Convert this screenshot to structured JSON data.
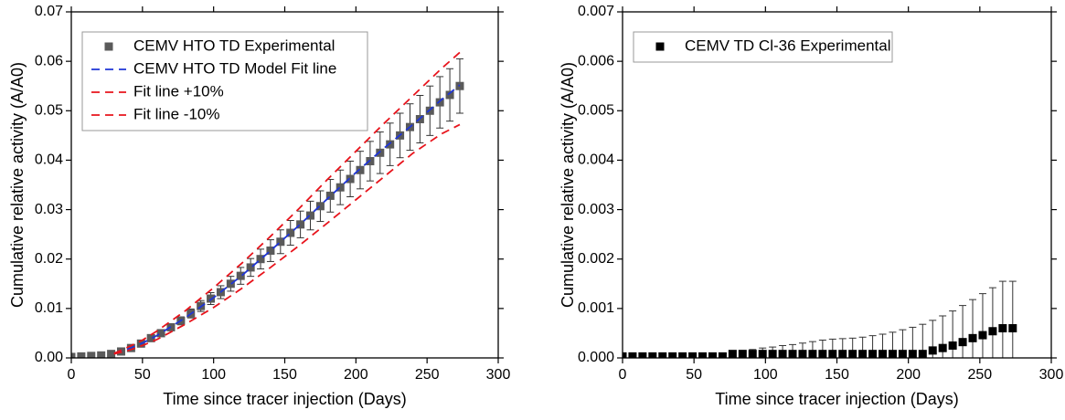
{
  "chart_data": [
    {
      "type": "scatter",
      "x_label": "Time since tracer injection (Days)",
      "y_label": "Cumulative relative activity (A/A0)",
      "xlim": [
        0,
        300
      ],
      "xticks": [
        0,
        50,
        100,
        150,
        200,
        250,
        300
      ],
      "ylim": [
        0,
        0.07
      ],
      "yticks": [
        {
          "value": 0,
          "label": "0.00"
        },
        {
          "value": 0.01,
          "label": "0.01"
        },
        {
          "value": 0.02,
          "label": "0.02"
        },
        {
          "value": 0.03,
          "label": "0.03"
        },
        {
          "value": 0.04,
          "label": "0.04"
        },
        {
          "value": 0.05,
          "label": "0.05"
        },
        {
          "value": 0.06,
          "label": "0.06"
        },
        {
          "value": 0.07,
          "label": "0.07"
        }
      ],
      "legend": "upper left",
      "series": [
        {
          "name": "CEMV HTO TD Experimental",
          "color": "#5a5a5a",
          "mode": "markers",
          "x": [
            0,
            7,
            14,
            21,
            28,
            35,
            42,
            49,
            56,
            63,
            70,
            77,
            84,
            91,
            98,
            105,
            112,
            119,
            126,
            133,
            140,
            147,
            154,
            161,
            168,
            175,
            182,
            189,
            196,
            203,
            210,
            217,
            224,
            231,
            238,
            245,
            252,
            259,
            266,
            273
          ],
          "values": [
            0.0002,
            0.0003,
            0.0004,
            0.0005,
            0.0008,
            0.0013,
            0.002,
            0.0029,
            0.004,
            0.005,
            0.0062,
            0.0075,
            0.009,
            0.0105,
            0.012,
            0.0133,
            0.015,
            0.0166,
            0.0183,
            0.02,
            0.0217,
            0.0235,
            0.0253,
            0.027,
            0.0288,
            0.0307,
            0.0328,
            0.0345,
            0.0362,
            0.038,
            0.0398,
            0.0415,
            0.0432,
            0.045,
            0.0467,
            0.0483,
            0.05,
            0.0517,
            0.0532,
            0.055
          ],
          "errors": [
            null,
            null,
            null,
            null,
            null,
            0.0001,
            0.0002,
            0.0003,
            0.0004,
            0.0005,
            0.0006,
            0.0008,
            0.0009,
            0.0011,
            0.0012,
            0.0013,
            0.0015,
            0.0017,
            0.0018,
            0.002,
            0.0022,
            0.0024,
            0.0025,
            0.0027,
            0.0029,
            0.0031,
            0.0033,
            0.0035,
            0.0036,
            0.0038,
            0.004,
            0.0042,
            0.0043,
            0.0045,
            0.0047,
            0.0048,
            0.005,
            0.0052,
            0.0053,
            0.0055
          ]
        },
        {
          "name": "CEMV HTO TD Model Fit line",
          "color": "#1f35d6",
          "mode": "lines",
          "dash": true,
          "x": [
            30,
            40,
            50,
            60,
            80,
            100,
            120,
            140,
            160,
            180,
            200,
            220,
            240,
            260,
            273
          ],
          "values": [
            0.0009,
            0.0018,
            0.003,
            0.0045,
            0.0081,
            0.0122,
            0.0167,
            0.0217,
            0.0268,
            0.0322,
            0.0375,
            0.0425,
            0.0472,
            0.0522,
            0.0552
          ]
        },
        {
          "name": "Fit line +10%",
          "color": "#e8141c",
          "mode": "lines",
          "dash": true,
          "x": [
            30,
            40,
            50,
            60,
            80,
            100,
            120,
            140,
            160,
            180,
            200,
            220,
            240,
            260,
            273
          ],
          "values": [
            0.0009,
            0.0022,
            0.0036,
            0.0054,
            0.0095,
            0.0142,
            0.0192,
            0.0246,
            0.0302,
            0.0361,
            0.0418,
            0.0475,
            0.053,
            0.0585,
            0.0618
          ]
        },
        {
          "name": "Fit line -10%",
          "color": "#e8141c",
          "mode": "lines",
          "dash": true,
          "x": [
            30,
            40,
            50,
            60,
            80,
            100,
            120,
            140,
            160,
            180,
            200,
            220,
            240,
            260,
            273
          ],
          "values": [
            0.0008,
            0.0015,
            0.0025,
            0.0037,
            0.0068,
            0.0102,
            0.0141,
            0.0183,
            0.0227,
            0.0273,
            0.032,
            0.0367,
            0.0414,
            0.0453,
            0.0472
          ]
        }
      ]
    },
    {
      "type": "scatter",
      "x_label": "Time since tracer injection (Days)",
      "y_label": "Cumulative relative activity (A/A0)",
      "xlim": [
        0,
        300
      ],
      "xticks": [
        0,
        50,
        100,
        150,
        200,
        250,
        300
      ],
      "ylim": [
        0,
        0.007
      ],
      "yticks": [
        {
          "value": 0,
          "label": "0.000"
        },
        {
          "value": 0.001,
          "label": "0.001"
        },
        {
          "value": 0.002,
          "label": "0.002"
        },
        {
          "value": 0.003,
          "label": "0.003"
        },
        {
          "value": 0.004,
          "label": "0.004"
        },
        {
          "value": 0.005,
          "label": "0.005"
        },
        {
          "value": 0.006,
          "label": "0.006"
        },
        {
          "value": 0.007,
          "label": "0.007"
        }
      ],
      "legend": "upper left",
      "series": [
        {
          "name": "CEMV TD Cl-36 Experimental",
          "color": "#000000",
          "mode": "markers",
          "x": [
            0,
            7,
            14,
            21,
            28,
            35,
            42,
            49,
            56,
            63,
            70,
            77,
            84,
            91,
            98,
            105,
            112,
            119,
            126,
            133,
            140,
            147,
            154,
            161,
            168,
            175,
            182,
            189,
            196,
            203,
            210,
            217,
            224,
            231,
            238,
            245,
            252,
            259,
            266,
            273
          ],
          "values": [
            3e-05,
            3e-05,
            3e-05,
            3e-05,
            3e-05,
            3e-05,
            3e-05,
            3e-05,
            3e-05,
            3e-05,
            3e-05,
            8e-05,
            8e-05,
            8e-05,
            8e-05,
            8e-05,
            8e-05,
            8e-05,
            8e-05,
            8e-05,
            8e-05,
            8e-05,
            8e-05,
            8e-05,
            8e-05,
            8e-05,
            8e-05,
            8e-05,
            8e-05,
            8e-05,
            8e-05,
            0.00015,
            0.0002,
            0.00025,
            0.00032,
            0.0004,
            0.00046,
            0.00054,
            0.0006,
            0.0006
          ],
          "errors": [
            null,
            null,
            null,
            null,
            null,
            null,
            null,
            null,
            null,
            null,
            null,
            4e-05,
            7e-05,
            9e-05,
            0.00012,
            0.00014,
            0.00017,
            0.00019,
            0.00022,
            0.00025,
            0.00028,
            0.0003,
            0.00031,
            0.00032,
            0.00034,
            0.00037,
            0.0004,
            0.00044,
            0.00049,
            0.00054,
            0.0006,
            0.00061,
            0.00065,
            0.0007,
            0.00074,
            0.00078,
            0.00084,
            0.00088,
            0.00095,
            0.00095
          ]
        }
      ]
    }
  ]
}
